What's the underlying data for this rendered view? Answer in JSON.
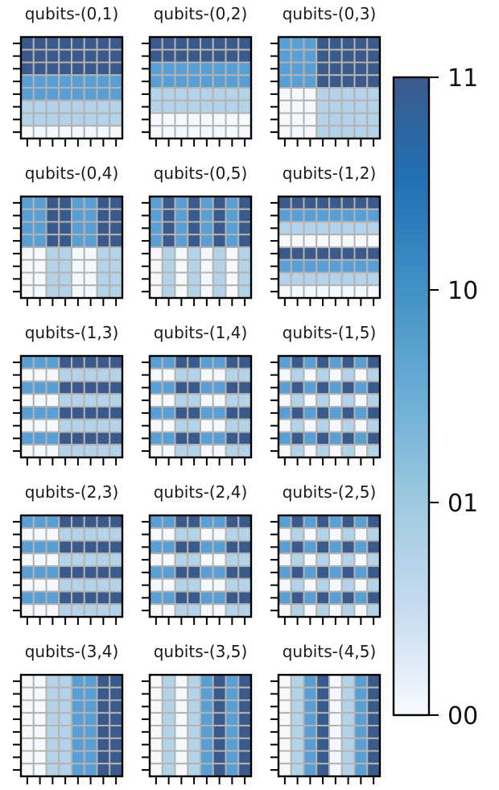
{
  "chart_data": {
    "type": "heatmap",
    "grid_size": 8,
    "colorbar": {
      "tick_labels": [
        "11",
        "10",
        "01",
        "00"
      ],
      "scale": [
        "#f7fbff",
        "#c6dbef",
        "#9ecae1",
        "#6baed6",
        "#4292c6",
        "#2171b5",
        "#3a5a8c"
      ]
    },
    "cell_colors": [
      "#f5f8fd",
      "#b3d3e8",
      "#5a9fd4",
      "#3a5a8c"
    ],
    "panels": [
      {
        "title": "qubits-(0,1)",
        "pattern": "rows",
        "seq": [
          3,
          3,
          3,
          2,
          2,
          1,
          1,
          0
        ]
      },
      {
        "title": "qubits-(0,2)",
        "pattern": "rows",
        "seq": [
          3,
          3,
          2,
          2,
          1,
          1,
          0,
          0
        ]
      },
      {
        "title": "qubits-(0,3)",
        "pattern": "quad",
        "tl": 2,
        "tr": 3,
        "bl": 0,
        "br": 1
      },
      {
        "title": "qubits-(0,4)",
        "pattern": "quadcols",
        "top": [
          2,
          2,
          3,
          3,
          2,
          2,
          3,
          3
        ],
        "bot": [
          0,
          0,
          1,
          1,
          0,
          0,
          1,
          1
        ]
      },
      {
        "title": "qubits-(0,5)",
        "pattern": "quadcols",
        "top": [
          2,
          3,
          2,
          3,
          2,
          3,
          2,
          3
        ],
        "bot": [
          0,
          1,
          0,
          1,
          0,
          1,
          0,
          1
        ]
      },
      {
        "title": "qubits-(1,2)",
        "pattern": "rows",
        "seq": [
          3,
          2,
          1,
          0,
          3,
          2,
          1,
          0
        ]
      },
      {
        "title": "qubits-(1,3)",
        "pattern": "outer",
        "rows": [
          1,
          0,
          1,
          0,
          1,
          0,
          1,
          0
        ],
        "cols": [
          0,
          0,
          0,
          1,
          1,
          1,
          1,
          1
        ]
      },
      {
        "title": "qubits-(1,4)",
        "pattern": "outer",
        "rows": [
          1,
          0,
          1,
          0,
          1,
          0,
          1,
          0
        ],
        "cols": [
          0,
          0,
          1,
          1,
          0,
          0,
          1,
          1
        ]
      },
      {
        "title": "qubits-(1,5)",
        "pattern": "outer",
        "rows": [
          1,
          0,
          1,
          0,
          1,
          0,
          1,
          0
        ],
        "cols": [
          0,
          1,
          0,
          1,
          0,
          1,
          0,
          1
        ]
      },
      {
        "title": "qubits-(2,3)",
        "pattern": "outer",
        "rows": [
          1,
          0,
          1,
          0,
          1,
          0,
          1,
          0
        ],
        "cols": [
          0,
          0,
          0,
          1,
          1,
          1,
          1,
          1
        ]
      },
      {
        "title": "qubits-(2,4)",
        "pattern": "outer",
        "rows": [
          1,
          0,
          1,
          0,
          1,
          0,
          1,
          0
        ],
        "cols": [
          0,
          0,
          1,
          1,
          0,
          0,
          1,
          1
        ]
      },
      {
        "title": "qubits-(2,5)",
        "pattern": "outer",
        "rows": [
          1,
          0,
          1,
          0,
          1,
          0,
          1,
          0
        ],
        "cols": [
          0,
          1,
          0,
          1,
          0,
          1,
          0,
          1
        ]
      },
      {
        "title": "qubits-(3,4)",
        "pattern": "cols",
        "seq": [
          0,
          0,
          1,
          1,
          2,
          2,
          3,
          3
        ]
      },
      {
        "title": "qubits-(3,5)",
        "pattern": "cols",
        "seq": [
          0,
          1,
          0,
          1,
          2,
          3,
          2,
          3
        ]
      },
      {
        "title": "qubits-(4,5)",
        "pattern": "cols",
        "seq": [
          0,
          1,
          2,
          3,
          0,
          1,
          2,
          3
        ]
      }
    ]
  }
}
